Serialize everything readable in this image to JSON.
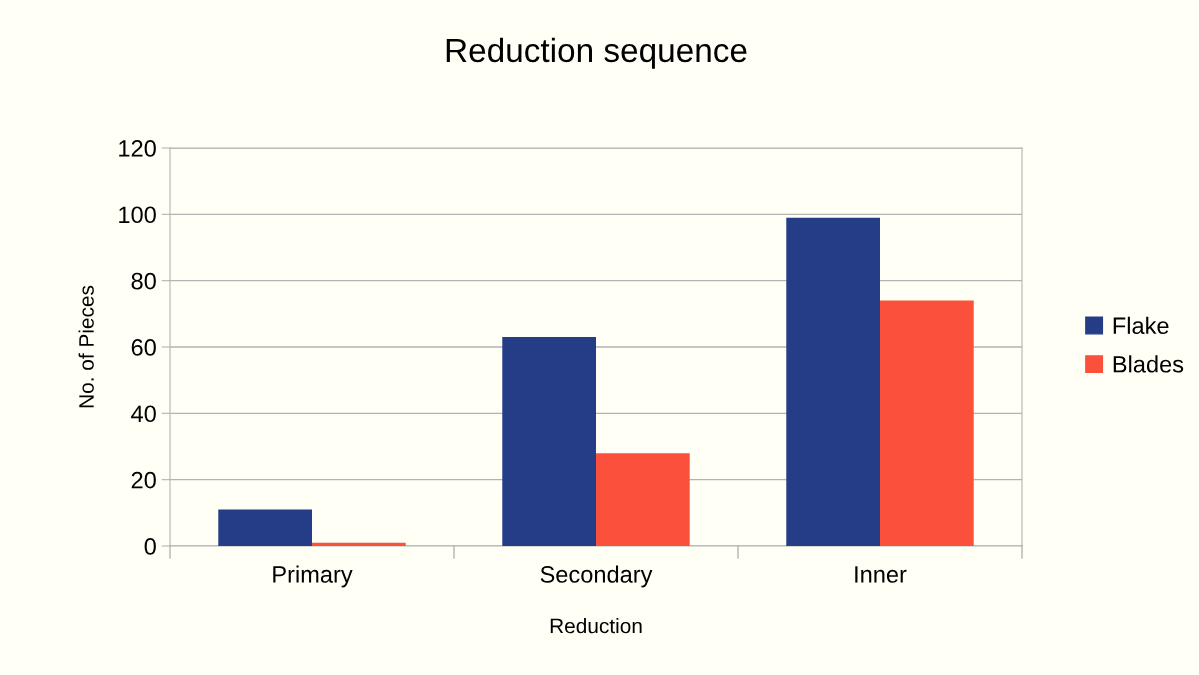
{
  "chart_data": {
    "type": "bar",
    "title": "Reduction sequence",
    "xlabel": "Reduction",
    "ylabel": "No. of Pieces",
    "categories": [
      "Primary",
      "Secondary",
      "Inner"
    ],
    "series": [
      {
        "name": "Flake",
        "color": "#253c87",
        "values": [
          11,
          63,
          99
        ]
      },
      {
        "name": "Blades",
        "color": "#fb503b",
        "values": [
          1,
          28,
          74
        ]
      }
    ],
    "ylim": [
      0,
      120
    ],
    "yticks": [
      0,
      20,
      40,
      60,
      80,
      100,
      120
    ],
    "grid": "y",
    "legend": "right"
  }
}
